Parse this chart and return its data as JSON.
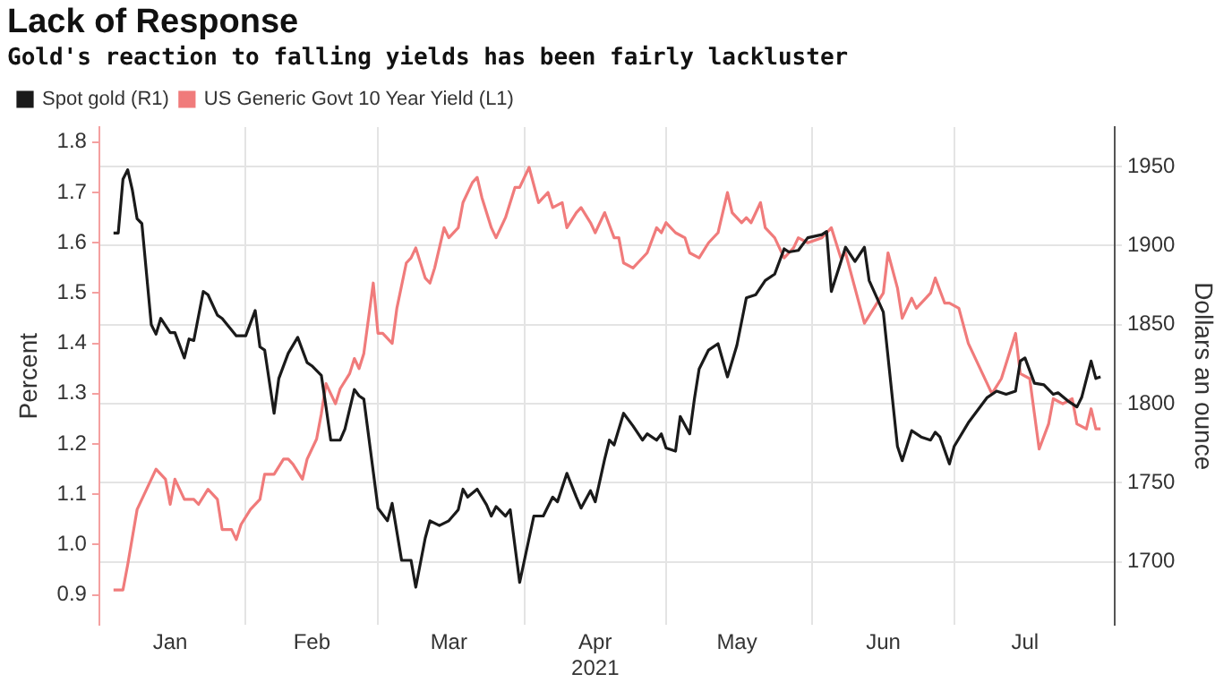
{
  "chart_data": {
    "type": "line",
    "title": "Lack of Response",
    "subtitle": "Gold's reaction to falling yields has been fairly lackluster",
    "ylabel": "Percent",
    "y2label": "Dollars an ounce",
    "xlim": [
      "2021-01-01",
      "2021-08-04"
    ],
    "xticks": [
      {
        "value": "2021-01-16",
        "label": "Jan"
      },
      {
        "value": "2021-02-01",
        "label": null
      },
      {
        "value": "2021-02-15",
        "label": "Feb"
      },
      {
        "value": "2021-03-01",
        "label": null
      },
      {
        "value": "2021-03-16",
        "label": "Mar"
      },
      {
        "value": "2021-04-01",
        "label": null
      },
      {
        "value": "2021-04-16",
        "label": "Apr\n2021"
      },
      {
        "value": "2021-05-01",
        "label": null
      },
      {
        "value": "2021-05-16",
        "label": "May"
      },
      {
        "value": "2021-06-01",
        "label": null
      },
      {
        "value": "2021-06-16",
        "label": "Jun"
      },
      {
        "value": "2021-07-01",
        "label": null
      },
      {
        "value": "2021-07-16",
        "label": "Jul"
      }
    ],
    "ylim": [
      0.84,
      1.83
    ],
    "yticks": [
      0.9,
      {
        "value": 1,
        "label": "1.0"
      },
      1.1,
      1.2,
      1.3,
      1.4,
      1.5,
      1.6,
      1.7,
      1.8
    ],
    "y2lim": [
      1660,
      1975
    ],
    "y2ticks": [
      1700,
      1750,
      1800,
      1850,
      1900,
      1950
    ],
    "grid": true,
    "legend": "top left",
    "marker": "none",
    "line_style": "solid",
    "series": [
      {
        "name": "Spot gold (R1)",
        "color": "#1a1a1a",
        "axis": "y2",
        "x": [
          "2021-01-04",
          "2021-01-05",
          "2021-01-06",
          "2021-01-07",
          "2021-01-08",
          "2021-01-09",
          "2021-01-10",
          "2021-01-12",
          "2021-01-13",
          "2021-01-14",
          "2021-01-16",
          "2021-01-17",
          "2021-01-19",
          "2021-01-20",
          "2021-01-21",
          "2021-01-23",
          "2021-01-24",
          "2021-01-26",
          "2021-01-27",
          "2021-01-30",
          "2021-02-01",
          "2021-02-03",
          "2021-02-04",
          "2021-02-05",
          "2021-02-07",
          "2021-02-08",
          "2021-02-10",
          "2021-02-12",
          "2021-02-14",
          "2021-02-15",
          "2021-02-17",
          "2021-02-18",
          "2021-02-19",
          "2021-02-21",
          "2021-02-22",
          "2021-02-24",
          "2021-02-25",
          "2021-02-26",
          "2021-03-01",
          "2021-03-03",
          "2021-03-04",
          "2021-03-06",
          "2021-03-08",
          "2021-03-09",
          "2021-03-11",
          "2021-03-12",
          "2021-03-14",
          "2021-03-16",
          "2021-03-18",
          "2021-03-19",
          "2021-03-20",
          "2021-03-22",
          "2021-03-24",
          "2021-03-25",
          "2021-03-26",
          "2021-03-28",
          "2021-03-29",
          "2021-03-31",
          "2021-04-03",
          "2021-04-05",
          "2021-04-07",
          "2021-04-08",
          "2021-04-10",
          "2021-04-12",
          "2021-04-13",
          "2021-04-15",
          "2021-04-16",
          "2021-04-18",
          "2021-04-19",
          "2021-04-20",
          "2021-04-22",
          "2021-04-24",
          "2021-04-26",
          "2021-04-27",
          "2021-04-29",
          "2021-04-30",
          "2021-05-01",
          "2021-05-03",
          "2021-05-04",
          "2021-05-06",
          "2021-05-07",
          "2021-05-08",
          "2021-05-10",
          "2021-05-12",
          "2021-05-14",
          "2021-05-16",
          "2021-05-18",
          "2021-05-20",
          "2021-05-22",
          "2021-05-24",
          "2021-05-26",
          "2021-05-27",
          "2021-05-29",
          "2021-05-31",
          "2021-06-03",
          "2021-06-04",
          "2021-06-05",
          "2021-06-08",
          "2021-06-10",
          "2021-06-12",
          "2021-06-13",
          "2021-06-16",
          "2021-06-19",
          "2021-06-20",
          "2021-06-22",
          "2021-06-24",
          "2021-06-26",
          "2021-06-27",
          "2021-06-28",
          "2021-06-30",
          "2021-07-01",
          "2021-07-04",
          "2021-07-08",
          "2021-07-10",
          "2021-07-12",
          "2021-07-14",
          "2021-07-15",
          "2021-07-16",
          "2021-07-18",
          "2021-07-20",
          "2021-07-22",
          "2021-07-23",
          "2021-07-25",
          "2021-07-27",
          "2021-07-28",
          "2021-07-30",
          "2021-07-31",
          "2021-08-01"
        ],
        "values": [
          1908,
          1908,
          1942,
          1948,
          1935,
          1917,
          1914,
          1850,
          1844,
          1854,
          1845,
          1845,
          1829,
          1841,
          1840,
          1871,
          1869,
          1856,
          1854,
          1843,
          1843,
          1859,
          1836,
          1834,
          1794,
          1816,
          1832,
          1842,
          1826,
          1824,
          1818,
          1798,
          1777,
          1777,
          1784,
          1809,
          1805,
          1803,
          1734,
          1726,
          1737,
          1701,
          1701,
          1684,
          1715,
          1726,
          1723,
          1726,
          1733,
          1746,
          1741,
          1746,
          1736,
          1729,
          1735,
          1729,
          1733,
          1687,
          1729,
          1729,
          1741,
          1738,
          1756,
          1741,
          1734,
          1745,
          1738,
          1765,
          1777,
          1774,
          1794,
          1786,
          1777,
          1781,
          1777,
          1781,
          1772,
          1770,
          1792,
          1781,
          1803,
          1822,
          1834,
          1838,
          1817,
          1837,
          1867,
          1869,
          1878,
          1882,
          1898,
          1896,
          1897,
          1905,
          1907,
          1909,
          1871,
          1899,
          1890,
          1899,
          1878,
          1858,
          1773,
          1764,
          1783,
          1779,
          1777,
          1782,
          1779,
          1762,
          1773,
          1788,
          1804,
          1808,
          1806,
          1808,
          1827,
          1829,
          1813,
          1812,
          1806,
          1807,
          1802,
          1798,
          1804,
          1827,
          1816,
          1817
        ]
      },
      {
        "name": "US Generic Govt 10 Year Yield (L1)",
        "color": "#f07b7b",
        "x": [
          "2021-01-04",
          "2021-01-06",
          "2021-01-07",
          "2021-01-09",
          "2021-01-11",
          "2021-01-13",
          "2021-01-15",
          "2021-01-16",
          "2021-01-17",
          "2021-01-19",
          "2021-01-20",
          "2021-01-21",
          "2021-01-22",
          "2021-01-24",
          "2021-01-26",
          "2021-01-27",
          "2021-01-29",
          "2021-01-30",
          "2021-01-31",
          "2021-02-02",
          "2021-02-04",
          "2021-02-05",
          "2021-02-07",
          "2021-02-09",
          "2021-02-10",
          "2021-02-11",
          "2021-02-13",
          "2021-02-14",
          "2021-02-16",
          "2021-02-17",
          "2021-02-18",
          "2021-02-20",
          "2021-02-21",
          "2021-02-23",
          "2021-02-24",
          "2021-02-25",
          "2021-02-26",
          "2021-02-28",
          "2021-03-01",
          "2021-03-02",
          "2021-03-04",
          "2021-03-05",
          "2021-03-07",
          "2021-03-08",
          "2021-03-09",
          "2021-03-11",
          "2021-03-12",
          "2021-03-13",
          "2021-03-15",
          "2021-03-16",
          "2021-03-18",
          "2021-03-19",
          "2021-03-21",
          "2021-03-22",
          "2021-03-23",
          "2021-03-25",
          "2021-03-26",
          "2021-03-28",
          "2021-03-30",
          "2021-03-31",
          "2021-04-02",
          "2021-04-04",
          "2021-04-05",
          "2021-04-06",
          "2021-04-07",
          "2021-04-09",
          "2021-04-10",
          "2021-04-12",
          "2021-04-13",
          "2021-04-15",
          "2021-04-16",
          "2021-04-18",
          "2021-04-20",
          "2021-04-21",
          "2021-04-22",
          "2021-04-24",
          "2021-04-25",
          "2021-04-27",
          "2021-04-29",
          "2021-04-30",
          "2021-05-01",
          "2021-05-03",
          "2021-05-05",
          "2021-05-06",
          "2021-05-08",
          "2021-05-10",
          "2021-05-12",
          "2021-05-14",
          "2021-05-15",
          "2021-05-17",
          "2021-05-18",
          "2021-05-19",
          "2021-05-21",
          "2021-05-22",
          "2021-05-24",
          "2021-05-26",
          "2021-05-28",
          "2021-05-29",
          "2021-05-31",
          "2021-06-03",
          "2021-06-05",
          "2021-06-07",
          "2021-06-08",
          "2021-06-10",
          "2021-06-12",
          "2021-06-14",
          "2021-06-16",
          "2021-06-17",
          "2021-06-19",
          "2021-06-20",
          "2021-06-22",
          "2021-06-23",
          "2021-06-25",
          "2021-06-26",
          "2021-06-27",
          "2021-06-29",
          "2021-06-30",
          "2021-07-02",
          "2021-07-04",
          "2021-07-07",
          "2021-07-09",
          "2021-07-11",
          "2021-07-12",
          "2021-07-14",
          "2021-07-15",
          "2021-07-17",
          "2021-07-18",
          "2021-07-19",
          "2021-07-21",
          "2021-07-22",
          "2021-07-24",
          "2021-07-26",
          "2021-07-27",
          "2021-07-29",
          "2021-07-30",
          "2021-07-31",
          "2021-08-01"
        ],
        "values": [
          0.91,
          0.91,
          0.96,
          1.07,
          1.11,
          1.15,
          1.13,
          1.08,
          1.13,
          1.09,
          1.09,
          1.09,
          1.08,
          1.11,
          1.09,
          1.03,
          1.03,
          1.01,
          1.04,
          1.07,
          1.09,
          1.14,
          1.14,
          1.17,
          1.17,
          1.16,
          1.13,
          1.17,
          1.21,
          1.26,
          1.32,
          1.28,
          1.31,
          1.34,
          1.37,
          1.35,
          1.38,
          1.52,
          1.42,
          1.42,
          1.4,
          1.47,
          1.56,
          1.57,
          1.59,
          1.53,
          1.52,
          1.55,
          1.63,
          1.61,
          1.63,
          1.68,
          1.72,
          1.73,
          1.69,
          1.63,
          1.61,
          1.65,
          1.71,
          1.71,
          1.75,
          1.68,
          1.69,
          1.7,
          1.67,
          1.68,
          1.63,
          1.66,
          1.67,
          1.64,
          1.62,
          1.66,
          1.61,
          1.61,
          1.56,
          1.55,
          1.56,
          1.58,
          1.63,
          1.62,
          1.64,
          1.62,
          1.61,
          1.58,
          1.57,
          1.6,
          1.62,
          1.7,
          1.66,
          1.64,
          1.65,
          1.64,
          1.68,
          1.63,
          1.61,
          1.57,
          1.59,
          1.61,
          1.6,
          1.61,
          1.63,
          1.57,
          1.58,
          1.51,
          1.44,
          1.47,
          1.5,
          1.58,
          1.51,
          1.45,
          1.49,
          1.47,
          1.49,
          1.5,
          1.53,
          1.48,
          1.48,
          1.47,
          1.4,
          1.34,
          1.3,
          1.33,
          1.36,
          1.42,
          1.34,
          1.33,
          1.26,
          1.19,
          1.24,
          1.29,
          1.28,
          1.29,
          1.24,
          1.23,
          1.27,
          1.23,
          1.23
        ]
      }
    ]
  }
}
